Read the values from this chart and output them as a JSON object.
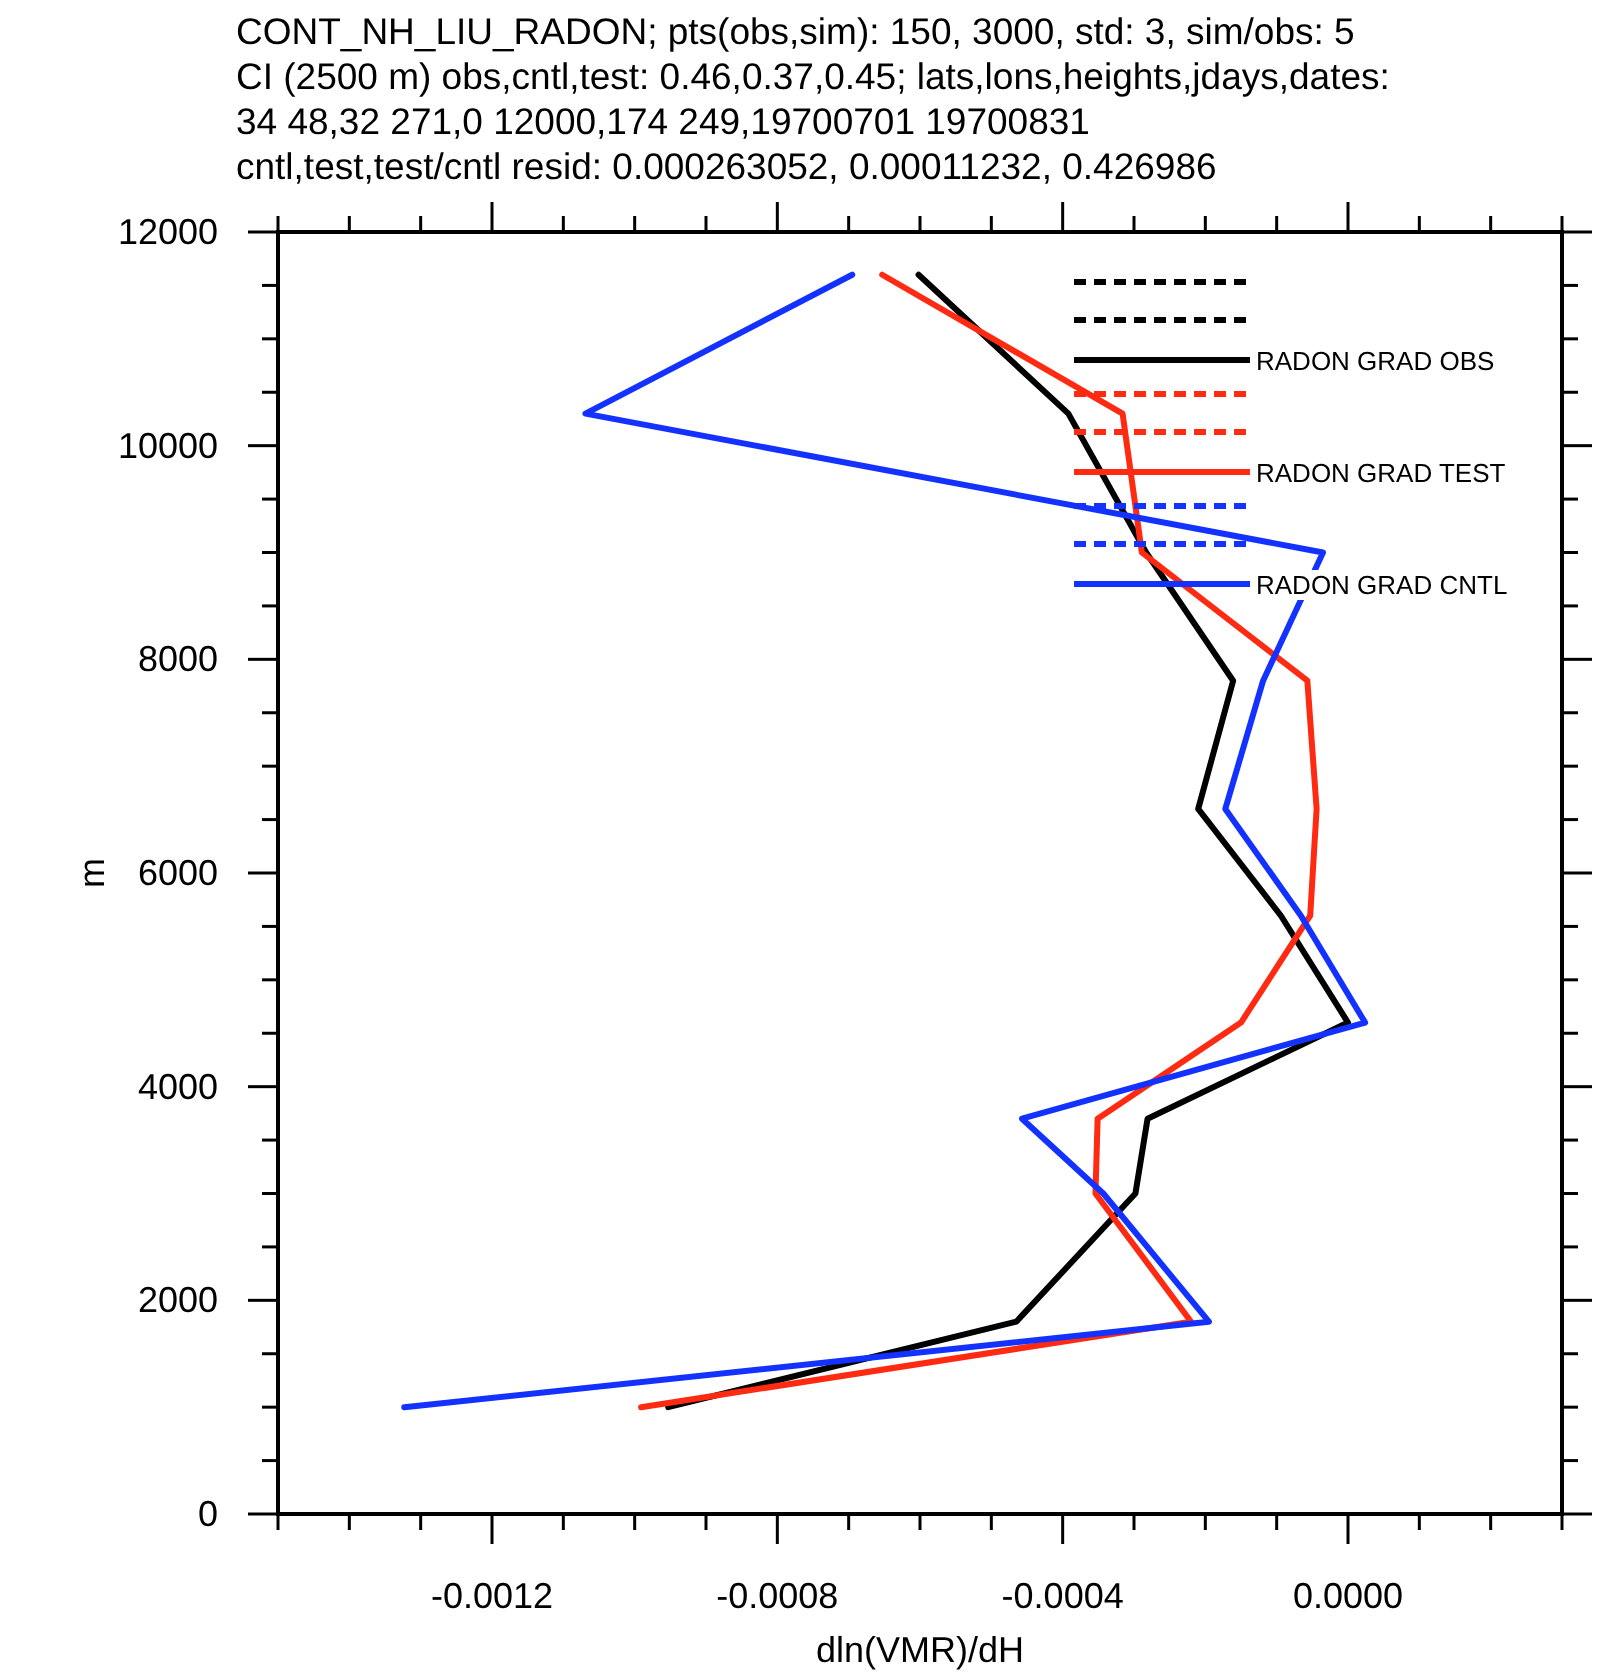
{
  "chart_data": {
    "type": "line",
    "title": "CONT_NH_LIU_RADON; pts(obs,sim): 150, 3000, std: 3, sim/obs: 5\nCI (2500 m) obs,cntl,test: 0.46,0.37,0.45; lats,lons,heights,jdays,dates:\n34 48,32 271,0 12000,174 249,19700701 19700831\ncntl,test,test/cntl resid: 0.000263052, 0.00011232, 0.426986",
    "xlabel": "dln(VMR)/dH",
    "ylabel": "m",
    "xlim": [
      -0.0015,
      0.0003
    ],
    "ylim": [
      0,
      12000
    ],
    "xticks": [
      {
        "value": -0.0015,
        "label": null
      },
      {
        "value": -0.0014,
        "label": null
      },
      {
        "value": -0.0013,
        "label": null
      },
      -0.0012,
      {
        "value": -0.0011,
        "label": null
      },
      {
        "value": -0.001,
        "label": null
      },
      {
        "value": -0.0009,
        "label": null
      },
      -0.0008,
      {
        "value": -0.0007,
        "label": null
      },
      {
        "value": -0.0006,
        "label": null
      },
      {
        "value": -0.0005,
        "label": null
      },
      -0.0004,
      {
        "value": -0.0003,
        "label": null
      },
      {
        "value": -0.0002,
        "label": null
      },
      {
        "value": -0.0001,
        "label": null
      },
      {
        "value": 0,
        "label": "0.0000"
      },
      {
        "value": 0.0001,
        "label": null
      },
      {
        "value": 0.0002,
        "label": null
      },
      {
        "value": 0.0003,
        "label": null
      }
    ],
    "yticks": [
      0,
      {
        "value": 500,
        "label": null
      },
      {
        "value": 1000,
        "label": null
      },
      {
        "value": 1500,
        "label": null
      },
      2000,
      {
        "value": 2500,
        "label": null
      },
      {
        "value": 3000,
        "label": null
      },
      {
        "value": 3500,
        "label": null
      },
      4000,
      {
        "value": 4500,
        "label": null
      },
      {
        "value": 5000,
        "label": null
      },
      {
        "value": 5500,
        "label": null
      },
      6000,
      {
        "value": 6500,
        "label": null
      },
      {
        "value": 7000,
        "label": null
      },
      {
        "value": 7500,
        "label": null
      },
      8000,
      {
        "value": 8500,
        "label": null
      },
      {
        "value": 9000,
        "label": null
      },
      {
        "value": 9500,
        "label": null
      },
      10000,
      {
        "value": 10500,
        "label": null
      },
      {
        "value": 11000,
        "label": null
      },
      {
        "value": 11500,
        "label": null
      },
      12000
    ],
    "grid": false,
    "legend": "top right",
    "line_style": "solid",
    "marker": "none",
    "series": [
      {
        "name": "RADON GRAD OBS",
        "color": "#000000",
        "x": [
          -0.000602,
          -0.000392,
          -0.000283,
          -0.000161,
          -0.00021,
          -9.4e-05,
          0.0,
          -0.000281,
          -0.000298,
          -0.000465,
          -0.000953
        ],
        "values": [
          11600,
          10300,
          9000,
          7800,
          6600,
          5600,
          4600,
          3700,
          3000,
          1800,
          1000
        ]
      },
      {
        "name": "RADON GRAD TEST",
        "color": "#ff2a12",
        "x": [
          -0.000653,
          -0.000316,
          -0.000289,
          -5.7e-05,
          -4.4e-05,
          -5.3e-05,
          -0.00015,
          -0.000351,
          -0.000354,
          -0.00022,
          -0.000991
        ],
        "values": [
          11600,
          10300,
          9000,
          7800,
          6600,
          5600,
          4600,
          3700,
          3000,
          1800,
          1000
        ]
      },
      {
        "name": "RADON GRAD CNTL",
        "color": "#1432ff",
        "x": [
          -0.000695,
          -0.001069,
          -3.5e-05,
          -0.000119,
          -0.000172,
          -6.6e-05,
          2.4e-05,
          -0.000457,
          -0.000343,
          -0.000195,
          -0.001323
        ],
        "values": [
          11600,
          10300,
          9000,
          7800,
          6600,
          5600,
          4600,
          3700,
          3000,
          1800,
          1000
        ]
      }
    ]
  }
}
